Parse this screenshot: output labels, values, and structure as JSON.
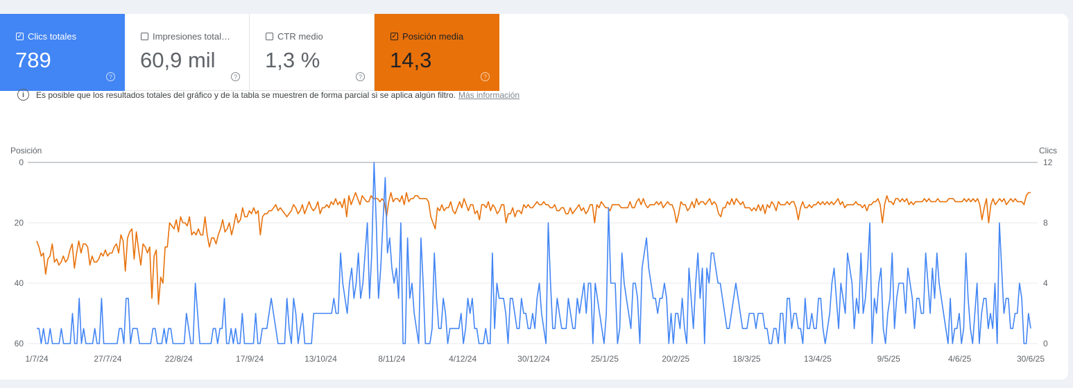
{
  "metrics": [
    {
      "label": "Clics totales",
      "value": "789",
      "checked": true
    },
    {
      "label": "Impresiones total…",
      "value": "60,9 mil",
      "checked": false
    },
    {
      "label": "CTR medio",
      "value": "1,3 %",
      "checked": false
    },
    {
      "label": "Posición media",
      "value": "14,3",
      "checked": true
    }
  ],
  "notice": {
    "text": "Es posible que los resultados totales del gráfico y de la tabla se muestren de forma parcial si se aplica algún filtro.",
    "link": "Más información"
  },
  "colors": {
    "clicks": "#4285f4",
    "position": "#e8710a"
  },
  "chart_data": {
    "type": "line",
    "left_axis": {
      "label": "Posición",
      "ticks": [
        "0",
        "20",
        "40",
        "60"
      ],
      "range": [
        0,
        60
      ],
      "reversed": true
    },
    "right_axis": {
      "label": "Clics",
      "ticks": [
        "12",
        "8",
        "4",
        "0"
      ],
      "range": [
        0,
        12
      ]
    },
    "x_ticks": [
      "1/7/24",
      "27/7/24",
      "22/8/24",
      "17/9/24",
      "13/10/24",
      "8/11/24",
      "4/12/24",
      "30/12/24",
      "25/1/25",
      "20/2/25",
      "18/3/25",
      "13/4/25",
      "9/5/25",
      "4/6/25",
      "30/6/25"
    ],
    "series": [
      {
        "name": "Posición media",
        "axis": "left",
        "color": "#e8710a",
        "values": [
          26,
          28,
          31,
          30,
          37,
          32,
          31,
          27,
          33,
          32,
          34,
          33,
          31,
          33,
          32,
          29,
          27,
          35,
          30,
          26,
          30,
          27,
          27,
          28,
          34,
          31,
          33,
          33,
          32,
          30,
          31,
          29,
          31,
          30,
          30,
          28,
          27,
          30,
          24,
          26,
          36,
          25,
          23,
          22,
          32,
          23,
          29,
          34,
          27,
          28,
          30,
          28,
          45,
          31,
          29,
          47,
          38,
          40,
          28,
          28,
          20,
          21,
          22,
          19,
          23,
          18,
          20,
          20,
          21,
          18,
          24,
          23,
          24,
          22,
          24,
          24,
          18,
          24,
          28,
          25,
          25,
          27,
          24,
          22,
          19,
          23,
          22,
          20,
          24,
          21,
          17,
          20,
          19,
          15,
          18,
          18,
          16,
          17,
          15,
          17,
          16,
          24,
          18,
          17,
          17,
          16,
          16,
          15,
          14,
          16,
          15,
          16,
          17,
          18,
          17,
          16,
          14,
          15,
          17,
          16,
          14,
          17,
          15,
          13,
          15,
          16,
          15,
          13,
          17,
          15,
          15,
          14,
          15,
          13,
          14,
          12,
          14,
          13,
          15,
          12,
          18,
          11,
          14,
          12,
          10,
          12,
          14,
          11,
          12,
          13,
          13,
          11,
          12,
          12,
          12,
          13,
          12,
          13,
          18,
          13,
          10,
          13,
          12,
          12,
          13,
          11,
          14,
          10,
          13,
          12,
          12,
          11,
          11,
          12,
          12,
          12,
          12,
          13,
          18,
          20,
          22,
          15,
          16,
          14,
          16,
          15,
          15,
          13,
          16,
          17,
          15,
          13,
          15,
          12,
          14,
          16,
          14,
          14,
          17,
          16,
          19,
          14,
          14,
          15,
          13,
          16,
          14,
          15,
          17,
          16,
          14,
          14,
          20,
          17,
          17,
          15,
          18,
          16,
          16,
          17,
          14,
          15,
          14,
          15,
          15,
          14,
          13,
          14,
          14,
          13,
          14,
          14,
          15,
          15,
          14,
          16,
          16,
          15,
          15,
          17,
          17,
          15,
          17,
          16,
          15,
          14,
          16,
          15,
          17,
          16,
          14,
          14,
          20,
          14,
          15,
          13,
          14,
          15,
          15,
          16,
          14,
          14,
          14,
          14,
          15,
          15,
          15,
          15,
          13,
          15,
          15,
          13,
          12,
          14,
          12,
          14,
          15,
          14,
          14,
          14,
          13,
          14,
          13,
          15,
          14,
          13,
          14,
          14,
          16,
          20,
          17,
          13,
          14,
          14,
          16,
          15,
          13,
          15,
          12,
          14,
          13,
          13,
          14,
          13,
          12,
          14,
          13,
          14,
          17,
          18,
          15,
          15,
          13,
          14,
          12,
          14,
          12,
          13,
          14,
          13,
          15,
          15,
          15,
          16,
          15,
          16,
          14,
          16,
          14,
          17,
          14,
          15,
          13,
          14,
          16,
          13,
          14,
          14,
          14,
          13,
          14,
          13,
          13,
          15,
          19,
          15,
          13,
          15,
          15,
          14,
          15,
          14,
          14,
          13,
          14,
          13,
          14,
          13,
          14,
          13,
          14,
          13,
          12,
          14,
          13,
          15,
          14,
          14,
          14,
          14,
          13,
          14,
          14,
          15,
          14,
          16,
          14,
          14,
          13,
          13,
          12,
          14,
          20,
          14,
          11,
          13,
          13,
          14,
          12,
          12,
          13,
          12,
          13,
          12,
          14,
          13,
          14,
          13,
          13,
          13,
          13,
          12,
          13,
          12,
          13,
          13,
          13,
          12,
          13,
          13,
          13,
          13,
          12,
          12,
          12,
          13,
          13,
          13,
          13,
          12,
          13,
          12,
          13,
          12,
          13,
          12,
          14,
          19,
          15,
          12,
          20,
          14,
          12,
          14,
          13,
          12,
          13,
          12,
          14,
          13,
          12,
          13,
          12,
          13,
          13,
          13,
          14,
          11,
          10,
          10
        ]
      },
      {
        "name": "Clics",
        "axis": "right",
        "color": "#4285f4",
        "values": [
          1,
          1,
          0,
          1,
          0,
          0,
          1,
          0,
          0,
          0,
          0,
          1,
          0,
          0,
          0,
          0,
          2,
          0,
          0,
          3,
          0,
          1,
          0,
          0,
          0,
          0,
          1,
          0,
          0,
          3,
          0,
          0,
          0,
          0,
          0,
          0,
          0,
          1,
          1,
          0,
          3,
          3,
          0,
          1,
          1,
          1,
          0,
          0,
          0,
          0,
          0,
          0,
          1,
          1,
          0,
          0,
          0,
          1,
          0,
          1,
          1,
          0,
          0,
          0,
          0,
          0,
          0,
          2,
          1,
          0,
          0,
          4,
          2,
          0,
          0,
          0,
          0,
          0,
          0,
          1,
          1,
          0,
          1,
          1,
          3,
          0,
          0,
          1,
          0,
          1,
          0,
          0,
          2,
          0,
          0,
          0,
          0,
          0,
          2,
          0,
          0,
          1,
          1,
          1,
          2,
          3,
          2,
          1,
          0,
          0,
          0,
          0,
          3,
          1,
          0,
          3,
          2,
          0,
          1,
          2,
          0,
          0,
          0,
          0,
          2,
          2,
          2,
          2,
          2,
          2,
          2,
          2,
          2,
          3,
          2,
          2,
          6,
          4,
          3,
          2,
          4,
          5,
          3,
          4,
          6,
          3,
          4,
          6,
          8,
          3,
          6,
          12,
          8,
          3,
          5,
          8,
          11,
          6,
          7,
          5,
          4,
          5,
          3,
          8,
          0,
          0,
          7,
          3,
          4,
          2,
          1,
          0,
          7,
          4,
          0,
          0,
          0,
          1,
          6,
          3,
          1,
          1,
          3,
          2,
          0,
          1,
          1,
          1,
          1,
          1,
          2,
          0,
          1,
          3,
          2,
          3,
          1,
          1,
          0,
          0,
          0,
          1,
          0,
          0,
          6,
          1,
          4,
          3,
          3,
          3,
          2,
          0,
          3,
          3,
          2,
          1,
          1,
          3,
          2,
          2,
          1,
          1,
          2,
          1,
          3,
          4,
          2,
          1,
          0,
          8,
          4,
          1,
          1,
          3,
          2,
          1,
          1,
          1,
          3,
          2,
          1,
          1,
          3,
          2,
          3,
          4,
          2,
          4,
          4,
          0,
          4,
          3,
          2,
          1,
          0,
          2,
          9,
          4,
          4,
          4,
          0,
          1,
          6,
          4,
          3,
          2,
          1,
          4,
          4,
          3,
          0,
          5,
          6,
          7,
          5,
          4,
          3,
          3,
          2,
          3,
          3,
          4,
          3,
          0,
          2,
          0,
          2,
          2,
          1,
          3,
          1,
          0,
          5,
          3,
          1,
          4,
          6,
          3,
          5,
          0,
          5,
          4,
          6,
          6,
          5,
          4,
          4,
          3,
          2,
          1,
          1,
          2,
          3,
          4,
          3,
          2,
          1,
          1,
          1,
          2,
          2,
          2,
          1,
          2,
          2,
          2,
          1,
          1,
          0,
          0,
          1,
          1,
          0,
          2,
          2,
          0,
          3,
          3,
          1,
          2,
          2,
          1,
          1,
          0,
          3,
          1,
          1,
          2,
          1,
          1,
          3,
          3,
          1,
          0,
          1,
          2,
          4,
          5,
          3,
          1,
          4,
          3,
          2,
          6,
          5,
          4,
          1,
          3,
          2,
          6,
          2,
          3,
          5,
          8,
          0,
          3,
          2,
          4,
          5,
          1,
          0,
          2,
          3,
          6,
          1,
          3,
          4,
          4,
          4,
          2,
          5,
          4,
          3,
          1,
          3,
          3,
          2,
          2,
          6,
          4,
          2,
          5,
          3,
          6,
          4,
          3,
          2,
          1,
          0,
          3,
          0,
          1,
          1,
          2,
          0,
          1,
          6,
          3,
          1,
          0,
          2,
          4,
          0,
          2,
          3,
          3,
          1,
          2,
          1,
          4,
          0,
          8,
          5,
          2,
          3,
          3,
          1,
          1,
          2,
          2,
          4,
          3,
          0,
          0,
          2,
          1
        ]
      }
    ]
  }
}
